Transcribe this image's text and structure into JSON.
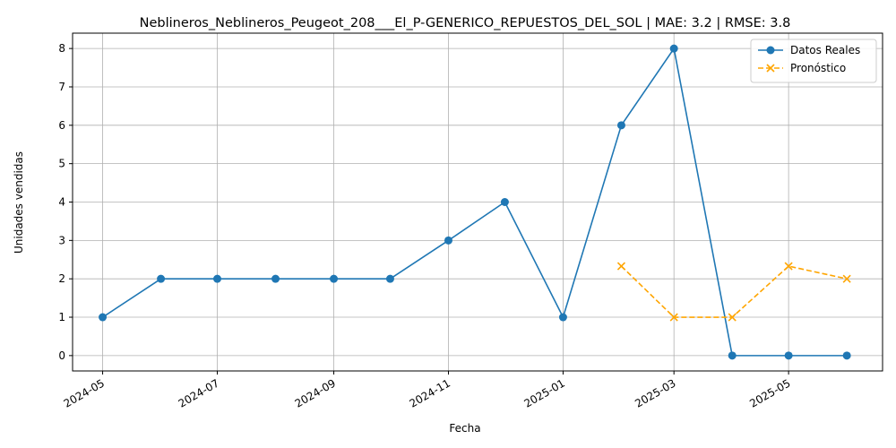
{
  "chart_data": {
    "type": "line",
    "title": "Neblineros_Neblineros_Peugeot_208___El_P-GENERICO_REPUESTOS_DEL_SOL | MAE: 3.2 | RMSE: 3.8",
    "xlabel": "Fecha",
    "ylabel": "Unidades vendidas",
    "x_ticks": [
      "2024-05",
      "2024-07",
      "2024-09",
      "2024-11",
      "2025-01",
      "2025-03",
      "2025-05"
    ],
    "y_ticks": [
      0,
      1,
      2,
      3,
      4,
      5,
      6,
      7,
      8
    ],
    "ylim": [
      -0.4,
      8.4
    ],
    "xlim": [
      "2024-04-15",
      "2025-06-20"
    ],
    "grid": true,
    "legend_position": "top-right",
    "series": [
      {
        "name": "Datos Reales",
        "color": "#1f77b4",
        "marker": "circle",
        "line_style": "solid",
        "x": [
          "2024-05-01",
          "2024-06-01",
          "2024-07-01",
          "2024-08-01",
          "2024-09-01",
          "2024-10-01",
          "2024-11-01",
          "2024-12-01",
          "2025-01-01",
          "2025-02-01",
          "2025-03-01",
          "2025-04-01",
          "2025-05-01",
          "2025-06-01"
        ],
        "values": [
          1,
          2,
          2,
          2,
          2,
          2,
          3,
          4,
          1,
          6,
          8,
          0,
          0,
          0
        ]
      },
      {
        "name": "Pronóstico",
        "color": "#ffa500",
        "marker": "x",
        "line_style": "dashed",
        "x": [
          "2025-02-01",
          "2025-03-01",
          "2025-04-01",
          "2025-05-01",
          "2025-06-01"
        ],
        "values": [
          2.33,
          1.0,
          1.0,
          2.33,
          2.0
        ]
      }
    ]
  }
}
